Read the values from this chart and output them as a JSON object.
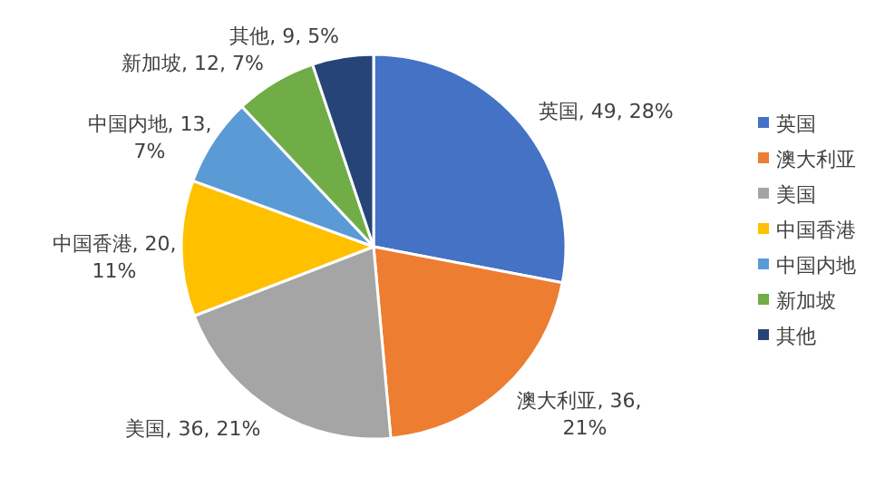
{
  "chart_data": {
    "type": "pie",
    "categories": [
      "英国",
      "澳大利亚",
      "美国",
      "中国香港",
      "中国内地",
      "新加坡",
      "其他"
    ],
    "values": [
      49,
      36,
      36,
      20,
      13,
      12,
      9
    ],
    "colors": [
      "#4472c4",
      "#ed7d31",
      "#a5a5a5",
      "#ffc000",
      "#5b9bd5",
      "#70ad47",
      "#264478"
    ],
    "value_labels": [
      "英国, 49, 28%",
      "澳大利亚, 36, 21%",
      "美国, 36, 21%",
      "中国香港, 20, 11%",
      "中国内地, 13, 7%",
      "新加坡, 12, 7%",
      "其他, 9, 5%"
    ],
    "legend": "right"
  }
}
